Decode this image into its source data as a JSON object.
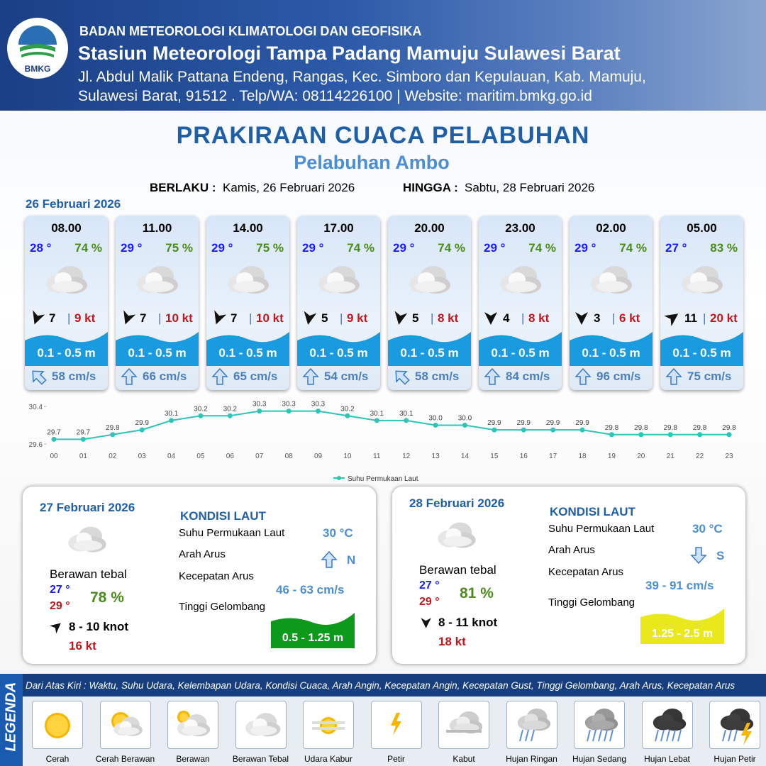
{
  "header": {
    "logo_text": "BMKG",
    "org": "BADAN METEOROLOGI KLIMATOLOGI DAN GEOFISIKA",
    "station": "Stasiun Meteorologi Tampa Padang Mamuju Sulawesi Barat",
    "address_1": "Jl. Abdul Malik Pattana Endeng, Rangas, Kec. Simboro dan Kepulauan, Kab. Mamuju,",
    "address_2": "Sulawesi Barat, 91512 . Telp/WA: 08114226100 | Website: maritim.bmkg.go.id"
  },
  "title": "PRAKIRAAN CUACA PELABUHAN",
  "subtitle": "Pelabuhan Ambo",
  "validity": {
    "from_label": "BERLAKU :",
    "from": "Kamis, 26 Februari 2026",
    "to_label": "HINGGA :",
    "to": "Sabtu, 28 Februari 2026"
  },
  "today": "26 Februari 2026",
  "hours_separator": "|",
  "hours": [
    {
      "time": "08.00",
      "temp": "28 °",
      "humidity": "74 %",
      "wind": "7",
      "gust": "9 kt",
      "wave": "0.1 - 0.5 m",
      "current": "58 cm/s"
    },
    {
      "time": "11.00",
      "temp": "29 °",
      "humidity": "75 %",
      "wind": "7",
      "gust": "10 kt",
      "wave": "0.1 - 0.5 m",
      "current": "66 cm/s"
    },
    {
      "time": "14.00",
      "temp": "29 °",
      "humidity": "75 %",
      "wind": "7",
      "gust": "10 kt",
      "wave": "0.1 - 0.5 m",
      "current": "65 cm/s"
    },
    {
      "time": "17.00",
      "temp": "29 °",
      "humidity": "74 %",
      "wind": "5",
      "gust": "9 kt",
      "wave": "0.1 - 0.5 m",
      "current": "54 cm/s"
    },
    {
      "time": "20.00",
      "temp": "29 °",
      "humidity": "74 %",
      "wind": "5",
      "gust": "8 kt",
      "wave": "0.1 - 0.5 m",
      "current": "58 cm/s"
    },
    {
      "time": "23.00",
      "temp": "29 °",
      "humidity": "74 %",
      "wind": "4",
      "gust": "8 kt",
      "wave": "0.1 - 0.5 m",
      "current": "84 cm/s"
    },
    {
      "time": "02.00",
      "temp": "29 °",
      "humidity": "74 %",
      "wind": "3",
      "gust": "6 kt",
      "wave": "0.1 - 0.5 m",
      "current": "96 cm/s"
    },
    {
      "time": "05.00",
      "temp": "27 °",
      "humidity": "83 %",
      "wind": "11",
      "gust": "20 kt",
      "wave": "0.1 - 0.5 m",
      "current": "75 cm/s"
    }
  ],
  "chart_data": {
    "type": "line",
    "categories": [
      "00",
      "01",
      "02",
      "03",
      "04",
      "05",
      "06",
      "07",
      "08",
      "09",
      "10",
      "11",
      "12",
      "13",
      "14",
      "15",
      "16",
      "17",
      "18",
      "19",
      "20",
      "21",
      "22",
      "23"
    ],
    "series": [
      {
        "name": "Suhu Permukaan Laut",
        "color": "#2ec4b6",
        "values": [
          29.7,
          29.7,
          29.8,
          29.9,
          30.1,
          30.2,
          30.2,
          30.3,
          30.3,
          30.3,
          30.2,
          30.1,
          30.1,
          30.0,
          30.0,
          29.9,
          29.9,
          29.9,
          29.9,
          29.8,
          29.8,
          29.8,
          29.8,
          29.8
        ],
        "value_labels": [
          "29.7",
          "29.7",
          "29.8",
          "29.9",
          "30.1",
          "30.2",
          "30.2",
          "30.3",
          "30.3",
          "30.3",
          "30.2",
          "30.1",
          "30.1",
          "30.0",
          "30.0",
          "29.9",
          "29.9",
          "29.9",
          "29.9",
          "29.8",
          "29.8",
          "29.8",
          "29.8",
          "29.8"
        ]
      }
    ],
    "ylim": [
      29.6,
      30.4
    ],
    "yticks": [
      29.6,
      30.4
    ]
  },
  "days": [
    {
      "date": "27 Februari 2026",
      "condition": "Berawan tebal",
      "temp_min": "27 °",
      "temp_max": "29 °",
      "humidity": "78 %",
      "wind": "8  - 10 knot",
      "gust": "16 kt",
      "sea_heading": "KONDISI LAUT",
      "sst_label": "Suhu Permukaan Laut",
      "sst": "30 °C",
      "current_dir_label": "Arah Arus",
      "current_dir": "N",
      "current_speed_label": "Kecepatan Arus",
      "current_speed": "46  - 63 cm/s",
      "wave_label": "Tinggi Gelombang",
      "wave": "0.5 - 1.25 m"
    },
    {
      "date": "28 Februari 2026",
      "condition": "Berawan tebal",
      "temp_min": "27 °",
      "temp_max": "29 °",
      "humidity": "81 %",
      "wind": "8  - 11 knot",
      "gust": "18 kt",
      "sea_heading": "KONDISI LAUT",
      "sst_label": "Suhu Permukaan Laut",
      "sst": "30 °C",
      "current_dir_label": "Arah Arus",
      "current_dir": "S",
      "current_speed_label": "Kecepatan Arus",
      "current_speed": "39  - 91 cm/s",
      "wave_label": "Tinggi Gelombang",
      "wave": "1.25 - 2.5 m"
    }
  ],
  "legend": {
    "title": "LEGENDA",
    "description": "Dari Atas Kiri : Waktu, Suhu Udara, Kelembapan Udara, Kondisi Cuaca, Arah Angin, Kecepatan Angin, Kecepatan Gust, Tinggi Gelombang, Arah Arus, Kecepatan Arus",
    "items": [
      "Cerah",
      "Cerah Berawan",
      "Berawan",
      "Berawan Tebal",
      "Udara Kabur",
      "Petir",
      "Kabut",
      "Hujan Ringan",
      "Hujan Sedang",
      "Hujan Lebat",
      "Hujan Petir"
    ]
  }
}
